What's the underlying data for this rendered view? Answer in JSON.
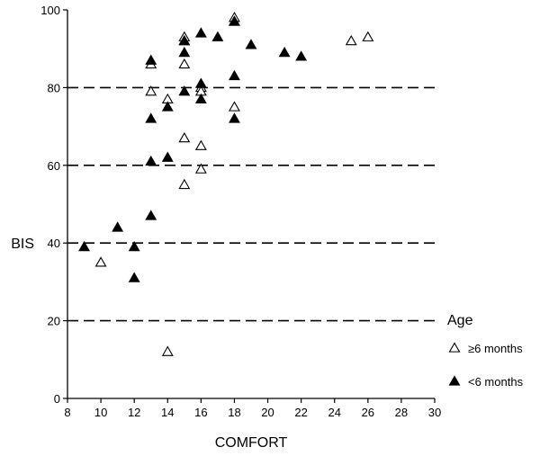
{
  "chart_data": {
    "type": "scatter",
    "xlabel": "COMFORT",
    "ylabel": "BIS",
    "xlim": [
      8,
      30
    ],
    "ylim": [
      0,
      100
    ],
    "xticks": [
      8,
      10,
      12,
      14,
      16,
      18,
      20,
      22,
      24,
      26,
      28,
      30
    ],
    "yticks": [
      0,
      20,
      40,
      60,
      80,
      100
    ],
    "reference_lines_y": [
      20,
      40,
      60,
      80
    ],
    "legend": {
      "title": "Age",
      "placement": "right",
      "entries": [
        {
          "label": "≥6 months",
          "marker": "open-triangle"
        },
        {
          "label": "<6 months",
          "marker": "filled-triangle"
        }
      ]
    },
    "series": [
      {
        "name": "≥6 months",
        "marker": "open-triangle",
        "points": [
          [
            10,
            35
          ],
          [
            13,
            86
          ],
          [
            13,
            79
          ],
          [
            14,
            77
          ],
          [
            14,
            12
          ],
          [
            15,
            93
          ],
          [
            15,
            92
          ],
          [
            15,
            86
          ],
          [
            15,
            67
          ],
          [
            15,
            55
          ],
          [
            16,
            80
          ],
          [
            16,
            79
          ],
          [
            16,
            65
          ],
          [
            16,
            59
          ],
          [
            18,
            98
          ],
          [
            18,
            97
          ],
          [
            18,
            75
          ],
          [
            25,
            92
          ],
          [
            26,
            93
          ]
        ]
      },
      {
        "name": "<6 months",
        "marker": "filled-triangle",
        "points": [
          [
            9,
            39
          ],
          [
            11,
            44
          ],
          [
            12,
            39
          ],
          [
            12,
            31
          ],
          [
            13,
            87
          ],
          [
            13,
            72
          ],
          [
            13,
            61
          ],
          [
            13,
            47
          ],
          [
            14,
            75
          ],
          [
            14,
            62
          ],
          [
            15,
            92
          ],
          [
            15,
            89
          ],
          [
            15,
            79
          ],
          [
            16,
            94
          ],
          [
            16,
            81
          ],
          [
            16,
            77
          ],
          [
            17,
            93
          ],
          [
            18,
            97
          ],
          [
            18,
            83
          ],
          [
            18,
            72
          ],
          [
            19,
            91
          ],
          [
            21,
            89
          ],
          [
            22,
            88
          ]
        ]
      }
    ]
  }
}
